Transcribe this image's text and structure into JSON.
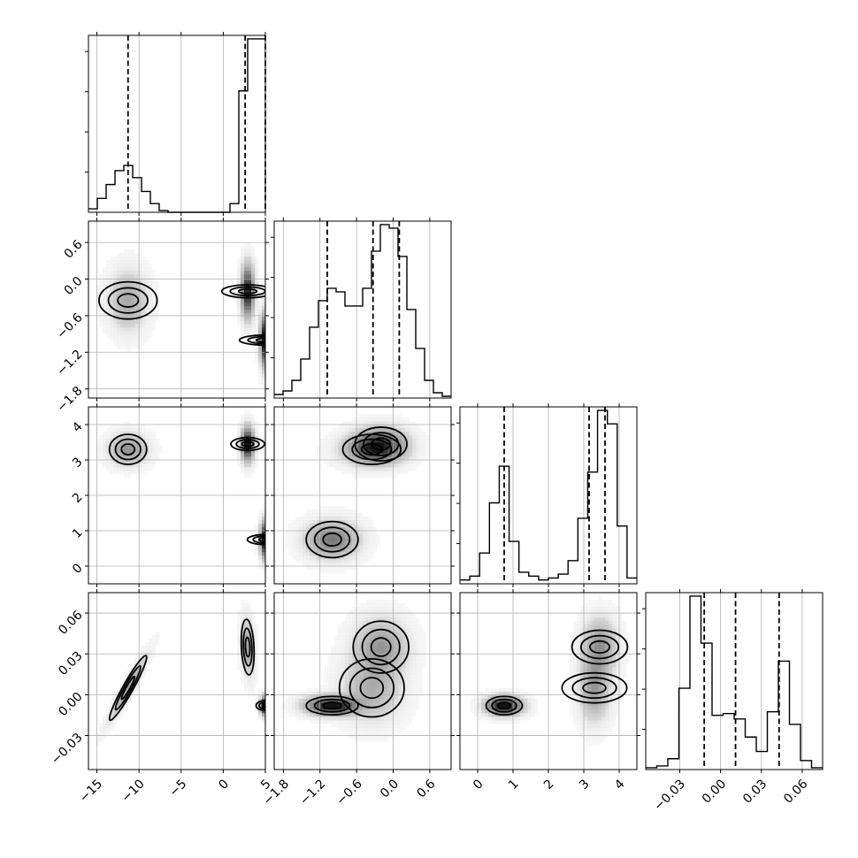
{
  "chart_data": {
    "type": "corner",
    "params": [
      {
        "range": [
          -16,
          5
        ],
        "ticks": [
          -15,
          -10,
          -5,
          0,
          5
        ],
        "labels": [
          "−15",
          "−10",
          "−5",
          "0",
          "5"
        ],
        "hist": {
          "edges_from": -16,
          "edges_to": 5,
          "counts": [
            0.02,
            0.08,
            0.16,
            0.24,
            0.27,
            0.2,
            0.12,
            0.05,
            0.01,
            0,
            0,
            0,
            0,
            0,
            0,
            0,
            0.05,
            0.7,
            1.0,
            1.0
          ]
        },
        "quantiles": [
          -11.3,
          2.6,
          5.0
        ]
      },
      {
        "range": [
          -1.95,
          0.95
        ],
        "ticks": [
          -1.8,
          -1.2,
          -0.6,
          0.0,
          0.6
        ],
        "labels": [
          "−1.8",
          "−1.2",
          "−0.6",
          "0.0",
          "0.6"
        ],
        "hist": {
          "edges_from": -1.95,
          "edges_to": 0.95,
          "counts": [
            0.02,
            0.04,
            0.1,
            0.22,
            0.4,
            0.55,
            0.62,
            0.6,
            0.52,
            0.52,
            0.62,
            0.83,
            0.98,
            0.96,
            0.8,
            0.5,
            0.28,
            0.1,
            0.03,
            0.01
          ]
        },
        "quantiles": [
          -1.08,
          -0.33,
          0.1
        ]
      },
      {
        "range": [
          -0.5,
          4.5
        ],
        "ticks": [
          0,
          1,
          2,
          3,
          4
        ],
        "labels": [
          "0",
          "1",
          "2",
          "3",
          "4"
        ],
        "hist": {
          "edges_from": -0.5,
          "edges_to": 4.5,
          "counts": [
            0.02,
            0.04,
            0.16,
            0.42,
            0.61,
            0.22,
            0.06,
            0.04,
            0.02,
            0.03,
            0.05,
            0.12,
            0.34,
            0.58,
            0.9,
            0.83,
            0.3,
            0.03
          ]
        },
        "quantiles": [
          0.75,
          3.15,
          3.6
        ]
      },
      {
        "range": [
          -0.055,
          0.075
        ],
        "ticks": [
          -0.03,
          0.0,
          0.03,
          0.06
        ],
        "labels": [
          "−0.03",
          "0.00",
          "0.03",
          "0.06"
        ],
        "hist": {
          "edges_from": -0.055,
          "edges_to": 0.075,
          "counts": [
            0.01,
            0.02,
            0.06,
            0.45,
            0.96,
            0.7,
            0.3,
            0.31,
            0.28,
            0.18,
            0.1,
            0.32,
            0.6,
            0.25,
            0.05,
            0.01
          ]
        },
        "quantiles": [
          -0.012,
          0.011,
          0.043
        ]
      }
    ],
    "modes": [
      {
        "weight": 0.33,
        "mean": [
          -11.3,
          -0.35,
          3.3,
          0.005
        ],
        "sd": [
          1.3,
          0.28,
          0.25,
          0.014
        ],
        "corr_03": 0.95
      },
      {
        "weight": 0.34,
        "mean": [
          2.9,
          -0.2,
          3.45,
          0.035
        ],
        "sd": [
          0.45,
          0.25,
          0.28,
          0.012
        ],
        "corr_03": -0.2
      },
      {
        "weight": 0.33,
        "mean": [
          5.0,
          -1.0,
          0.75,
          -0.008
        ],
        "sd": [
          0.35,
          0.25,
          0.3,
          0.004
        ],
        "corr_03": 0.0
      }
    ]
  }
}
